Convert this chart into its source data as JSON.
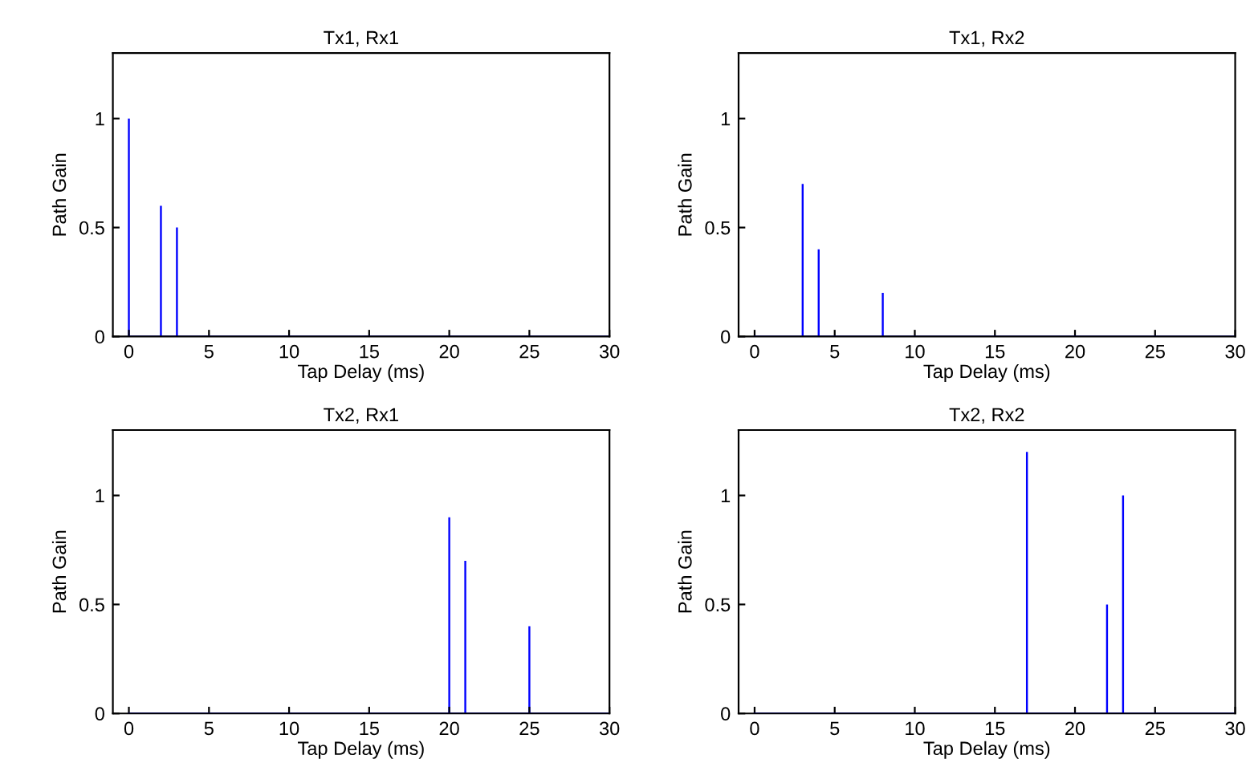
{
  "chart_data": [
    {
      "type": "bar",
      "title": "Tx1, Rx1",
      "xlabel": "Tap Delay (ms)",
      "ylabel": "Path Gain",
      "x": [
        0,
        1,
        2,
        3,
        4,
        5,
        6,
        7,
        8,
        9,
        10,
        11,
        12,
        13,
        14,
        15,
        16,
        17,
        18,
        19,
        20,
        21,
        22,
        23,
        24,
        25,
        26,
        27,
        28,
        29,
        30
      ],
      "series": [
        {
          "color": "#0000ff",
          "values": [
            1,
            0,
            0.6,
            0.5,
            0,
            0,
            0,
            0,
            0,
            0,
            0,
            0,
            0,
            0,
            0,
            0,
            0,
            0,
            0,
            0,
            0,
            0,
            0,
            0,
            0,
            0,
            0,
            0,
            0,
            0,
            0
          ]
        }
      ],
      "xlim": [
        -1,
        30
      ],
      "xticks": [
        0,
        5,
        10,
        15,
        20,
        25,
        30
      ],
      "ylim": [
        0,
        1.3
      ],
      "yticks": [
        0,
        0.5,
        1
      ],
      "grid": false
    },
    {
      "type": "bar",
      "title": "Tx1, Rx2",
      "xlabel": "Tap Delay (ms)",
      "ylabel": "Path Gain",
      "x": [
        0,
        1,
        2,
        3,
        4,
        5,
        6,
        7,
        8,
        9,
        10,
        11,
        12,
        13,
        14,
        15,
        16,
        17,
        18,
        19,
        20,
        21,
        22,
        23,
        24,
        25,
        26,
        27,
        28,
        29,
        30
      ],
      "series": [
        {
          "color": "#0000ff",
          "values": [
            0,
            0,
            0,
            0.7,
            0.4,
            0,
            0,
            0,
            0.2,
            0,
            0,
            0,
            0,
            0,
            0,
            0,
            0,
            0,
            0,
            0,
            0,
            0,
            0,
            0,
            0,
            0,
            0,
            0,
            0,
            0,
            0
          ]
        }
      ],
      "xlim": [
        -1,
        30
      ],
      "xticks": [
        0,
        5,
        10,
        15,
        20,
        25,
        30
      ],
      "ylim": [
        0,
        1.3
      ],
      "yticks": [
        0,
        0.5,
        1
      ],
      "grid": false
    },
    {
      "type": "bar",
      "title": "Tx2, Rx1",
      "xlabel": "Tap Delay (ms)",
      "ylabel": "Path Gain",
      "x": [
        0,
        1,
        2,
        3,
        4,
        5,
        6,
        7,
        8,
        9,
        10,
        11,
        12,
        13,
        14,
        15,
        16,
        17,
        18,
        19,
        20,
        21,
        22,
        23,
        24,
        25,
        26,
        27,
        28,
        29,
        30
      ],
      "series": [
        {
          "color": "#0000ff",
          "values": [
            0,
            0,
            0,
            0,
            0,
            0,
            0,
            0,
            0,
            0,
            0,
            0,
            0,
            0,
            0,
            0,
            0,
            0,
            0,
            0,
            0.9,
            0.7,
            0,
            0,
            0,
            0.4,
            0,
            0,
            0,
            0,
            0
          ]
        }
      ],
      "xlim": [
        -1,
        30
      ],
      "xticks": [
        0,
        5,
        10,
        15,
        20,
        25,
        30
      ],
      "ylim": [
        0,
        1.3
      ],
      "yticks": [
        0,
        0.5,
        1
      ],
      "grid": false
    },
    {
      "type": "bar",
      "title": "Tx2, Rx2",
      "xlabel": "Tap Delay (ms)",
      "ylabel": "Path Gain",
      "x": [
        0,
        1,
        2,
        3,
        4,
        5,
        6,
        7,
        8,
        9,
        10,
        11,
        12,
        13,
        14,
        15,
        16,
        17,
        18,
        19,
        20,
        21,
        22,
        23,
        24,
        25,
        26,
        27,
        28,
        29,
        30
      ],
      "series": [
        {
          "color": "#0000ff",
          "values": [
            0,
            0,
            0,
            0,
            0,
            0,
            0,
            0,
            0,
            0,
            0,
            0,
            0,
            0,
            0,
            0,
            0,
            1.2,
            0,
            0,
            0,
            0,
            0.5,
            1,
            0,
            0,
            0,
            0,
            0,
            0,
            0
          ]
        }
      ],
      "xlim": [
        -1,
        30
      ],
      "xticks": [
        0,
        5,
        10,
        15,
        20,
        25,
        30
      ],
      "ylim": [
        0,
        1.3
      ],
      "yticks": [
        0,
        0.5,
        1
      ],
      "grid": false
    }
  ]
}
